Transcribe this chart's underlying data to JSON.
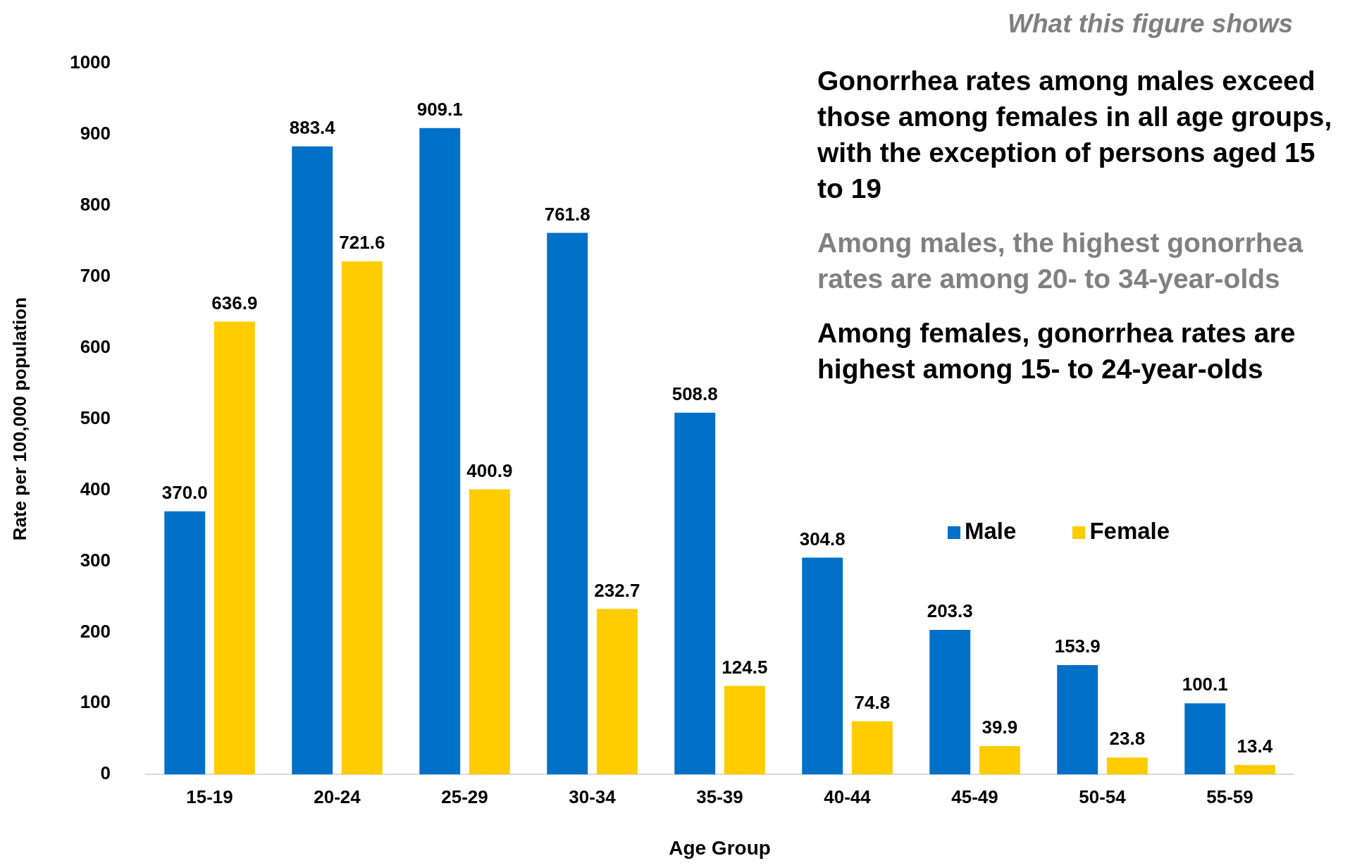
{
  "chart_data": {
    "type": "bar",
    "xlabel": "Age Group",
    "ylabel": "Rate per 100,000 population",
    "categories": [
      "15-19",
      "20-24",
      "25-29",
      "30-34",
      "35-39",
      "40-44",
      "45-49",
      "50-54",
      "55-59"
    ],
    "series": [
      {
        "name": "Male",
        "color": "#0070c8",
        "values": [
          370.0,
          883.4,
          909.1,
          761.8,
          508.8,
          304.8,
          203.3,
          153.9,
          100.1
        ],
        "value_labels": [
          "370.0",
          "883.4",
          "909.1",
          "761.8",
          "508.8",
          "304.8",
          "203.3",
          "153.9",
          "100.1"
        ]
      },
      {
        "name": "Female",
        "color": "#ffcc00",
        "values": [
          636.9,
          721.6,
          400.9,
          232.7,
          124.5,
          74.8,
          39.9,
          23.8,
          13.4
        ],
        "value_labels": [
          "636.9",
          "721.6",
          "400.9",
          "232.7",
          "124.5",
          "74.8",
          "39.9",
          "23.8",
          "13.4"
        ]
      }
    ],
    "ylim": [
      0,
      1000
    ],
    "yticks": [
      0,
      100,
      200,
      300,
      400,
      500,
      600,
      700,
      800,
      900,
      1000
    ],
    "grid": false,
    "legend": "right",
    "annotations": [
      "What this figure shows",
      "Gonorrhea rates among males exceed those among females in all age groups, with the exception of persons aged 15 to 19",
      "Among males, the highest gonorrhea rates are among 20- to 34-year-olds",
      "Among females, gonorrhea rates are highest among 15- to 24-year-olds"
    ]
  }
}
